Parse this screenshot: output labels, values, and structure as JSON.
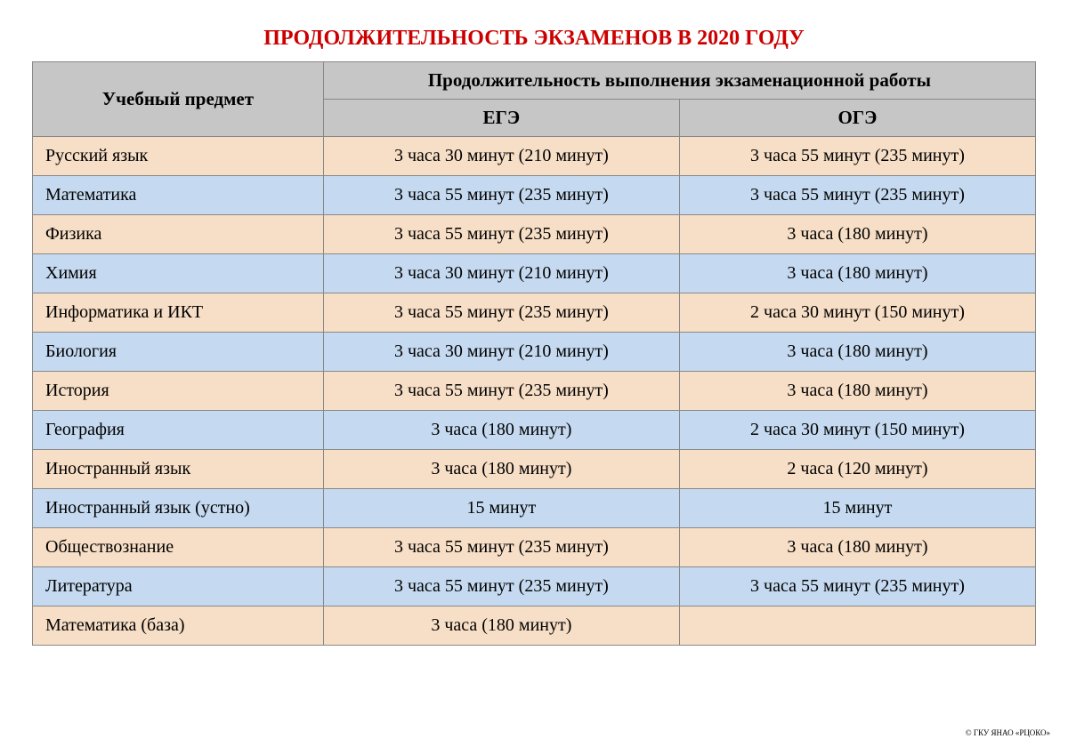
{
  "title": {
    "text": "ПРОДОЛЖИТЕЛЬНОСТЬ ЭКЗАМЕНОВ В 2020 ГОДУ",
    "color": "#cc0000",
    "fontsize": 24
  },
  "table": {
    "type": "table",
    "header_bg": "#c6c6c6",
    "row_colors": [
      "#f7dec6",
      "#c5daf0"
    ],
    "border_color": "#888888",
    "header_fontsize": 21,
    "body_fontsize": 20,
    "text_color": "#000000",
    "columns": [
      {
        "key": "subject",
        "label": "Учебный предмет",
        "width_pct": 29,
        "align": "left"
      },
      {
        "key": "ege",
        "label": "ЕГЭ",
        "width_pct": 35.5,
        "align": "center"
      },
      {
        "key": "oge",
        "label": "ОГЭ",
        "width_pct": 35.5,
        "align": "center"
      }
    ],
    "duration_header": "Продолжительность выполнения экзаменационной работы",
    "rows": [
      {
        "subject": "Русский язык",
        "ege": "3 часа 30 минут (210 минут)",
        "oge": "3 часа 55 минут (235 минут)"
      },
      {
        "subject": "Математика",
        "ege": "3 часа 55 минут (235 минут)",
        "oge": "3 часа 55 минут (235 минут)"
      },
      {
        "subject": "Физика",
        "ege": "3 часа 55 минут (235 минут)",
        "oge": "3 часа (180 минут)"
      },
      {
        "subject": "Химия",
        "ege": "3 часа 30 минут (210 минут)",
        "oge": "3 часа (180 минут)"
      },
      {
        "subject": "Информатика и ИКТ",
        "ege": "3 часа 55 минут (235 минут)",
        "oge": "2 часа 30 минут (150 минут)"
      },
      {
        "subject": "Биология",
        "ege": "3 часа 30 минут (210 минут)",
        "oge": "3 часа (180 минут)"
      },
      {
        "subject": "История",
        "ege": "3 часа 55 минут (235 минут)",
        "oge": "3 часа (180 минут)"
      },
      {
        "subject": "География",
        "ege": "3 часа (180 минут)",
        "oge": "2 часа 30 минут (150 минут)"
      },
      {
        "subject": "Иностранный язык",
        "ege": "3 часа (180 минут)",
        "oge": "2 часа (120 минут)"
      },
      {
        "subject": "Иностранный язык (устно)",
        "ege": "15 минут",
        "oge": "15 минут"
      },
      {
        "subject": "Обществознание",
        "ege": "3 часа 55 минут (235 минут)",
        "oge": "3 часа (180 минут)"
      },
      {
        "subject": "Литература",
        "ege": "3 часа 55 минут (235 минут)",
        "oge": "3 часа 55 минут (235 минут)"
      },
      {
        "subject": "Математика (база)",
        "ege": "3 часа (180 минут)",
        "oge": ""
      }
    ]
  },
  "footer": {
    "text": "© ГКУ ЯНАО «РЦОКО»",
    "fontsize": 9,
    "color": "#000000"
  }
}
